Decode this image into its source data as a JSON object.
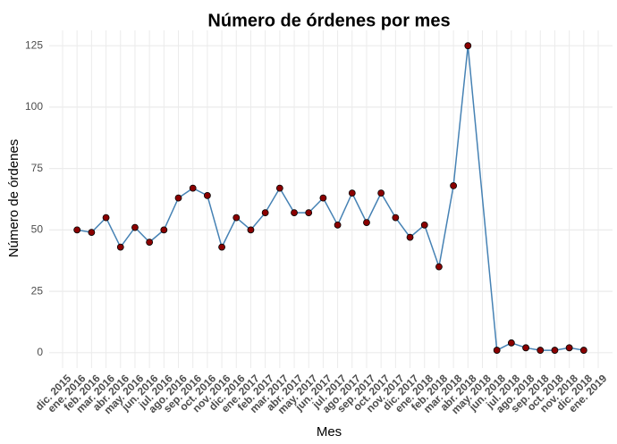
{
  "chart_data": {
    "type": "line",
    "title": "Número de órdenes por mes",
    "x_label": "Mes",
    "y_label": "Número de órdenes",
    "xticks": [
      "dic. 2015",
      "ene. 2016",
      "feb. 2016",
      "mar. 2016",
      "abr. 2016",
      "may. 2016",
      "jun. 2016",
      "jul. 2016",
      "ago. 2016",
      "sep. 2016",
      "oct. 2016",
      "nov. 2016",
      "dic. 2016",
      "ene. 2017",
      "feb. 2017",
      "mar. 2017",
      "abr. 2017",
      "may. 2017",
      "jun. 2017",
      "jul. 2017",
      "ago. 2017",
      "sep. 2017",
      "oct. 2017",
      "nov. 2017",
      "dic. 2017",
      "ene. 2018",
      "feb. 2018",
      "mar. 2018",
      "abr. 2018",
      "may. 2018",
      "jun. 2018",
      "jul. 2018",
      "ago. 2018",
      "sep. 2018",
      "oct. 2018",
      "nov. 2018",
      "dic. 2018",
      "ene. 2019"
    ],
    "x": [
      "ene. 2016",
      "feb. 2016",
      "mar. 2016",
      "abr. 2016",
      "may. 2016",
      "jun. 2016",
      "jul. 2016",
      "ago. 2016",
      "sep. 2016",
      "oct. 2016",
      "nov. 2016",
      "dic. 2016",
      "ene. 2017",
      "feb. 2017",
      "mar. 2017",
      "abr. 2017",
      "may. 2017",
      "jun. 2017",
      "jul. 2017",
      "ago. 2017",
      "sep. 2017",
      "oct. 2017",
      "nov. 2017",
      "dic. 2017",
      "ene. 2018",
      "feb. 2018",
      "mar. 2018",
      "abr. 2018",
      "jun. 2018",
      "jul. 2018",
      "ago. 2018",
      "sep. 2018",
      "oct. 2018",
      "nov. 2018",
      "dic. 2018"
    ],
    "values": [
      50,
      49,
      55,
      43,
      51,
      45,
      50,
      63,
      67,
      64,
      43,
      55,
      50,
      57,
      67,
      57,
      57,
      63,
      52,
      65,
      53,
      65,
      55,
      47,
      52,
      35,
      68,
      125,
      1,
      4,
      2,
      1,
      1,
      2,
      1
    ],
    "color": "#4682b4",
    "point_color": "#8b0000",
    "ylim": [
      -6.25,
      131.25
    ],
    "yticks": [
      0,
      25,
      50,
      75,
      100,
      125
    ],
    "grid": true
  }
}
